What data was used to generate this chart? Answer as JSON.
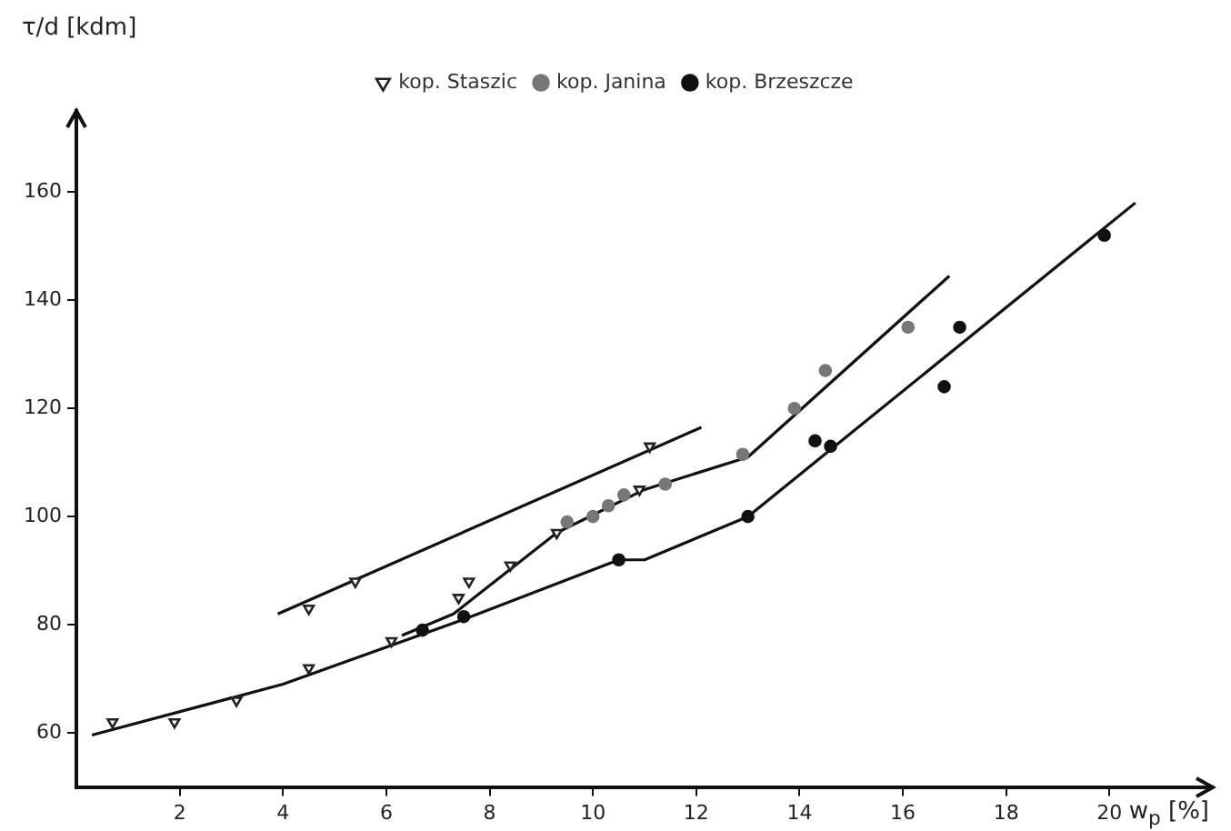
{
  "chart_data": {
    "type": "scatter",
    "xlabel": "w$_{p}$ [%]",
    "ylabel": "τ/d [kdm]",
    "xlim": [
      0,
      22
    ],
    "ylim": [
      50,
      175
    ],
    "xticks": [
      2,
      4,
      6,
      8,
      10,
      12,
      14,
      16,
      18,
      20
    ],
    "yticks": [
      60,
      80,
      100,
      120,
      140,
      160
    ],
    "grid": false,
    "legend": "top",
    "series": [
      {
        "name": "kop. Staszic",
        "color": "#222222",
        "marker": "triangle",
        "x": [
          0.7,
          1.9,
          3.1,
          4.5,
          6.1,
          7.4,
          7.6,
          8.4,
          9.3,
          4.5,
          5.4,
          10.9,
          11.1
        ],
        "values": [
          62,
          62,
          66,
          72,
          77,
          85,
          88,
          91,
          97,
          83,
          88,
          105,
          113
        ]
      },
      {
        "name": "kop. Janina",
        "color": "#777777",
        "marker": "circle",
        "x": [
          9.5,
          10.0,
          10.3,
          10.6,
          11.4,
          12.9,
          13.9,
          14.5,
          16.1
        ],
        "values": [
          99,
          100,
          102,
          104,
          106,
          111.5,
          120,
          127,
          135
        ]
      },
      {
        "name": "kop. Brzeszcze",
        "color": "#111111",
        "marker": "circle",
        "x": [
          6.7,
          7.5,
          10.5,
          13.0,
          14.3,
          14.6,
          16.8,
          17.1,
          19.9
        ],
        "values": [
          79,
          81.5,
          92,
          100,
          114,
          113,
          124,
          135,
          152
        ]
      },
      {
        "type": "line",
        "color": "#111111",
        "marker": "none",
        "x": [
          3.9,
          12.1
        ],
        "values": [
          82,
          116.5
        ]
      },
      {
        "type": "line",
        "color": "#111111",
        "marker": "none",
        "x": [
          6.3,
          7.3,
          9.3,
          11.0,
          13.0,
          16.9
        ],
        "values": [
          78,
          82,
          97,
          105,
          111,
          144.5
        ]
      },
      {
        "type": "line",
        "color": "#111111",
        "marker": "none",
        "x": [
          0.3,
          4,
          7.5,
          10.5,
          11,
          13,
          20.5
        ],
        "values": [
          59.6,
          69,
          81,
          92,
          92,
          100,
          158
        ]
      }
    ]
  }
}
